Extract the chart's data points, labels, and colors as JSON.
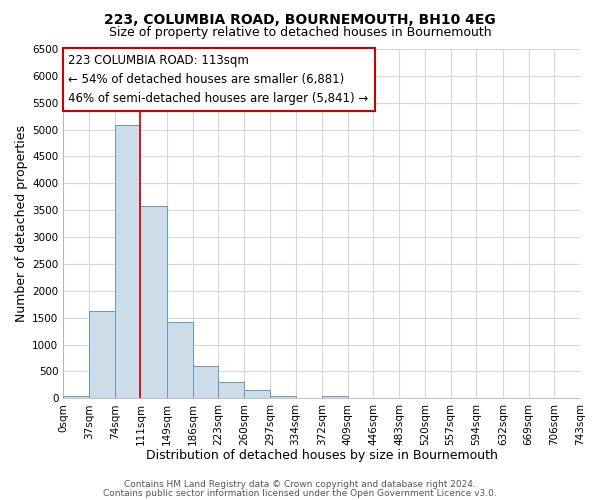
{
  "title": "223, COLUMBIA ROAD, BOURNEMOUTH, BH10 4EG",
  "subtitle": "Size of property relative to detached houses in Bournemouth",
  "xlabel": "Distribution of detached houses by size in Bournemouth",
  "ylabel": "Number of detached properties",
  "bin_edges": [
    0,
    37,
    74,
    111,
    149,
    186,
    223,
    260,
    297,
    334,
    372,
    409,
    446,
    483,
    520,
    557,
    594,
    632,
    669,
    706,
    743
  ],
  "bar_heights": [
    50,
    1630,
    5080,
    3580,
    1420,
    610,
    305,
    150,
    50,
    0,
    50,
    0,
    0,
    0,
    0,
    0,
    0,
    0,
    0,
    0
  ],
  "bar_color": "#ccdce8",
  "bar_edgecolor": "#6699bb",
  "property_line_x": 111,
  "property_line_color": "#cc0000",
  "annotation_text_line1": "223 COLUMBIA ROAD: 113sqm",
  "annotation_text_line2": "← 54% of detached houses are smaller (6,881)",
  "annotation_text_line3": "46% of semi-detached houses are larger (5,841) →",
  "annotation_box_edgecolor": "#cc0000",
  "tick_labels": [
    "0sqm",
    "37sqm",
    "74sqm",
    "111sqm",
    "149sqm",
    "186sqm",
    "223sqm",
    "260sqm",
    "297sqm",
    "334sqm",
    "372sqm",
    "409sqm",
    "446sqm",
    "483sqm",
    "520sqm",
    "557sqm",
    "594sqm",
    "632sqm",
    "669sqm",
    "706sqm",
    "743sqm"
  ],
  "ylim": [
    0,
    6500
  ],
  "xlim": [
    0,
    743
  ],
  "yticks": [
    0,
    500,
    1000,
    1500,
    2000,
    2500,
    3000,
    3500,
    4000,
    4500,
    5000,
    5500,
    6000,
    6500
  ],
  "footer_line1": "Contains HM Land Registry data © Crown copyright and database right 2024.",
  "footer_line2": "Contains public sector information licensed under the Open Government Licence v3.0.",
  "plot_bg_color": "#ffffff",
  "fig_bg_color": "#ffffff",
  "grid_color": "#d0d8e0",
  "title_fontsize": 10,
  "subtitle_fontsize": 9,
  "axis_label_fontsize": 9,
  "tick_fontsize": 7.5,
  "annotation_fontsize": 8.5,
  "footer_fontsize": 6.5
}
